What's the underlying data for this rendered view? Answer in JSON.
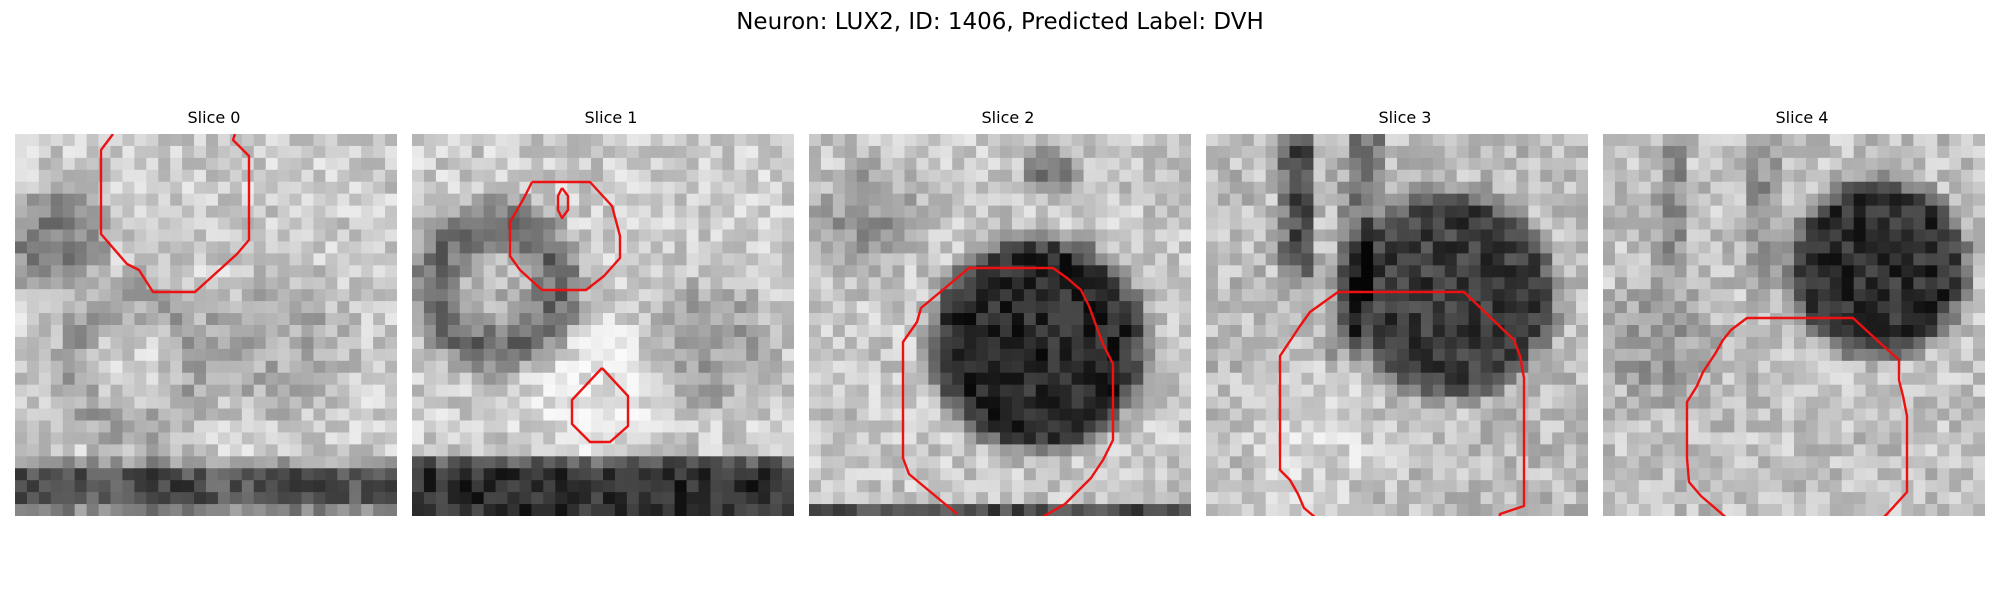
{
  "figure": {
    "title": "Neuron: LUX2, ID: 1406, Predicted Label: DVH"
  },
  "colors": {
    "contour": "#ee1111",
    "background": "#ffffff"
  },
  "panels": [
    {
      "title": "Slice 0",
      "image": "grayscale-em-patch",
      "overlay": "red-contour"
    },
    {
      "title": "Slice 1",
      "image": "grayscale-em-patch",
      "overlay": "red-contour"
    },
    {
      "title": "Slice 2",
      "image": "grayscale-em-patch",
      "overlay": "red-contour"
    },
    {
      "title": "Slice 3",
      "image": "grayscale-em-patch",
      "overlay": "red-contour"
    },
    {
      "title": "Slice 4",
      "image": "grayscale-em-patch",
      "overlay": "red-contour"
    }
  ]
}
